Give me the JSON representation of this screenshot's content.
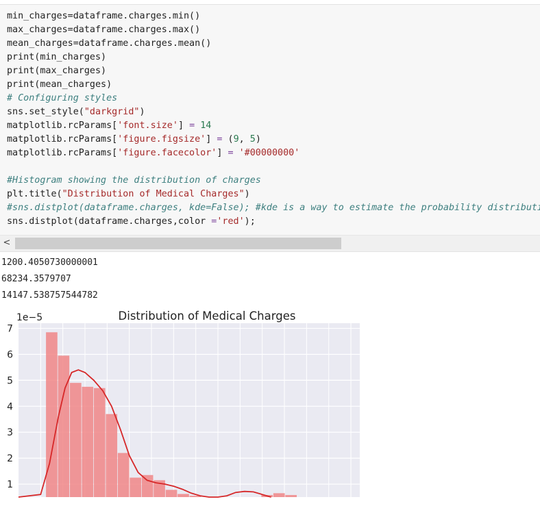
{
  "code_lines": [
    [
      {
        "t": "min_charges=dataframe.charges.min()",
        "c": ""
      }
    ],
    [
      {
        "t": "max_charges=dataframe.charges.max()",
        "c": ""
      }
    ],
    [
      {
        "t": "mean_charges=dataframe.charges.mean()",
        "c": ""
      }
    ],
    [
      {
        "t": "print(min_charges)",
        "c": ""
      }
    ],
    [
      {
        "t": "print(max_charges)",
        "c": ""
      }
    ],
    [
      {
        "t": "print(mean_charges)",
        "c": ""
      }
    ],
    [
      {
        "t": "# Configuring styles",
        "c": "comment"
      }
    ],
    [
      {
        "t": "sns.set_style(",
        "c": ""
      },
      {
        "t": "\"darkgrid\"",
        "c": "string"
      },
      {
        "t": ")",
        "c": ""
      }
    ],
    [
      {
        "t": "matplotlib.rcParams[",
        "c": ""
      },
      {
        "t": "'font.size'",
        "c": "string"
      },
      {
        "t": "] ",
        "c": ""
      },
      {
        "t": "=",
        "c": "op"
      },
      {
        "t": " ",
        "c": ""
      },
      {
        "t": "14",
        "c": "number"
      }
    ],
    [
      {
        "t": "matplotlib.rcParams[",
        "c": ""
      },
      {
        "t": "'figure.figsize'",
        "c": "string"
      },
      {
        "t": "] ",
        "c": ""
      },
      {
        "t": "=",
        "c": "op"
      },
      {
        "t": " (",
        "c": ""
      },
      {
        "t": "9",
        "c": "number"
      },
      {
        "t": ", ",
        "c": ""
      },
      {
        "t": "5",
        "c": "number"
      },
      {
        "t": ")",
        "c": ""
      }
    ],
    [
      {
        "t": "matplotlib.rcParams[",
        "c": ""
      },
      {
        "t": "'figure.facecolor'",
        "c": "string"
      },
      {
        "t": "] ",
        "c": ""
      },
      {
        "t": "=",
        "c": "op"
      },
      {
        "t": " ",
        "c": ""
      },
      {
        "t": "'#00000000'",
        "c": "string"
      }
    ],
    [
      {
        "t": "",
        "c": ""
      }
    ],
    [
      {
        "t": "#Histogram showing the distribution of charges",
        "c": "comment"
      }
    ],
    [
      {
        "t": "plt.title(",
        "c": ""
      },
      {
        "t": "\"Distribution of Medical Charges\"",
        "c": "string"
      },
      {
        "t": ")",
        "c": ""
      }
    ],
    [
      {
        "t": "#sns.distplot(dataframe.charges, kde=False); #kde is a way to estimate the probability distribution",
        "c": "comment"
      }
    ],
    [
      {
        "t": "sns.distplot(dataframe.charges,color ",
        "c": ""
      },
      {
        "t": "=",
        "c": "op"
      },
      {
        "t": "'red'",
        "c": "string"
      },
      {
        "t": ");",
        "c": ""
      }
    ]
  ],
  "scrollbar": {
    "left_arrow": "<"
  },
  "output_lines": [
    "1200.4050730000001",
    "68234.3579707",
    "14147.538757544782"
  ],
  "chart_data": {
    "type": "bar",
    "title": "Distribution of Medical Charges",
    "offset_label": "1e−5",
    "y_ticks": [
      1,
      2,
      3,
      4,
      5,
      6,
      7
    ],
    "ylim": [
      0.5,
      7.2
    ],
    "xlim": [
      -5000,
      72000
    ],
    "bin_start": 1200,
    "bin_width": 2700,
    "values": [
      6.85,
      5.95,
      4.9,
      4.75,
      4.7,
      3.7,
      2.2,
      1.25,
      1.35,
      1.15,
      0.78,
      0.62,
      0.55,
      0,
      0,
      0,
      0,
      0,
      0.58,
      0.65,
      0.58,
      0.5,
      0.45
    ],
    "kde": [
      [
        -5000,
        0.25
      ],
      [
        0,
        0.6
      ],
      [
        2000,
        1.8
      ],
      [
        4000,
        3.6
      ],
      [
        5500,
        4.7
      ],
      [
        7000,
        5.3
      ],
      [
        8500,
        5.4
      ],
      [
        10000,
        5.3
      ],
      [
        12000,
        5.0
      ],
      [
        14000,
        4.6
      ],
      [
        16000,
        4.0
      ],
      [
        18000,
        3.1
      ],
      [
        20000,
        2.1
      ],
      [
        22000,
        1.45
      ],
      [
        24000,
        1.15
      ],
      [
        26000,
        1.05
      ],
      [
        28000,
        1.0
      ],
      [
        30000,
        0.92
      ],
      [
        32000,
        0.8
      ],
      [
        34000,
        0.65
      ],
      [
        36000,
        0.55
      ],
      [
        38000,
        0.5
      ],
      [
        40000,
        0.5
      ],
      [
        42000,
        0.55
      ],
      [
        44000,
        0.68
      ],
      [
        46000,
        0.72
      ],
      [
        48000,
        0.7
      ],
      [
        50000,
        0.6
      ],
      [
        52000,
        0.5
      ]
    ],
    "bar_color": "#f08080",
    "line_color": "#d62728",
    "grid": true,
    "background": "#eaeaf2"
  }
}
